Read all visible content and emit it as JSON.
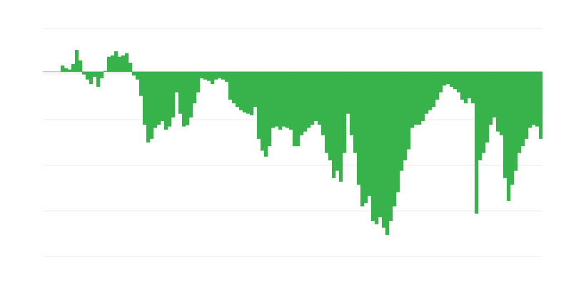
{
  "chart_data": {
    "type": "bar",
    "title": "",
    "xlabel": "",
    "ylabel": "",
    "grid": true,
    "ylim": [
      -4.05,
      0.95
    ],
    "gridlines": [
      0.95,
      -0.05,
      -1.05,
      -2.05,
      -3.05,
      -4.05
    ],
    "colors": {
      "bars": "#38b24a",
      "grid": "#ececec",
      "baseline": "#b0b0b0"
    },
    "values": [
      0.14,
      0.08,
      0.05,
      0.17,
      0.48,
      0.25,
      -0.06,
      -0.17,
      -0.27,
      -0.11,
      -0.33,
      -0.14,
      0.02,
      0.33,
      0.36,
      0.45,
      0.33,
      0.36,
      0.41,
      0.2,
      -0.08,
      -0.17,
      -0.53,
      -1.16,
      -1.55,
      -1.47,
      -1.23,
      -1.16,
      -1.08,
      -1.27,
      -1.2,
      -1.0,
      -0.45,
      -0.92,
      -1.2,
      -1.17,
      -1.0,
      -0.69,
      -0.45,
      -0.14,
      -0.17,
      -0.2,
      -0.27,
      -0.17,
      -0.14,
      -0.17,
      -0.22,
      -0.61,
      -0.69,
      -0.77,
      -0.84,
      -0.89,
      -0.92,
      -0.95,
      -0.77,
      -1.47,
      -1.73,
      -1.86,
      -1.63,
      -1.23,
      -1.2,
      -1.27,
      -1.2,
      -1.23,
      -1.27,
      -1.63,
      -1.63,
      -1.39,
      -1.31,
      -1.23,
      -1.16,
      -1.08,
      -1.16,
      -1.39,
      -1.78,
      -1.94,
      -2.33,
      -2.17,
      -2.41,
      -1.78,
      -0.92,
      -1.39,
      -1.78,
      -2.48,
      -2.95,
      -2.88,
      -2.72,
      -3.27,
      -3.34,
      -3.19,
      -3.42,
      -3.58,
      -3.27,
      -2.95,
      -2.64,
      -2.17,
      -1.94,
      -1.7,
      -1.23,
      -1.16,
      -1.16,
      -1.08,
      -0.92,
      -0.84,
      -0.77,
      -0.61,
      -0.45,
      -0.3,
      -0.27,
      -0.33,
      -0.38,
      -0.45,
      -0.61,
      -0.69,
      -0.58,
      -0.69,
      -3.11,
      -1.94,
      -1.78,
      -1.55,
      -1.16,
      -1.0,
      -1.31,
      -1.39,
      -2.33,
      -2.83,
      -2.48,
      -2.17,
      -1.78,
      -1.63,
      -1.47,
      -1.23,
      -1.16,
      -1.2,
      -1.47
    ]
  }
}
